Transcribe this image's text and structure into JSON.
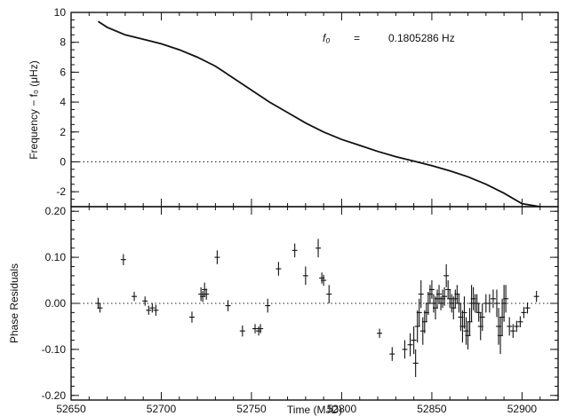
{
  "chart_data": [
    {
      "type": "line",
      "ylabel": "Frequency − f₀ (μHz)",
      "xlim": [
        52650,
        52920
      ],
      "ylim": [
        -3,
        10
      ],
      "yticks": [
        -2,
        0,
        2,
        4,
        6,
        8,
        10
      ],
      "annotation": {
        "symbol": "f₀",
        "equals": "=",
        "value": "0.1805286 Hz"
      },
      "series": [
        {
          "x": [
            52665,
            52670,
            52680,
            52690,
            52700,
            52710,
            52720,
            52730,
            52740,
            52750,
            52760,
            52770,
            52780,
            52790,
            52800,
            52810,
            52820,
            52830,
            52840,
            52850,
            52860,
            52870,
            52880,
            52890,
            52900,
            52910
          ],
          "y": [
            9.4,
            9.0,
            8.5,
            8.2,
            7.9,
            7.5,
            7.0,
            6.4,
            5.6,
            4.8,
            4.0,
            3.3,
            2.6,
            2.0,
            1.5,
            1.1,
            0.7,
            0.35,
            0.05,
            -0.25,
            -0.6,
            -1.0,
            -1.5,
            -2.1,
            -2.8,
            -3.3
          ]
        }
      ]
    },
    {
      "type": "scatter",
      "xlabel": "Time (MJD)",
      "ylabel": "Phase Residuals",
      "xlim": [
        52650,
        52920
      ],
      "ylim": [
        -0.21,
        0.21
      ],
      "xticks": [
        52650,
        52700,
        52750,
        52800,
        52850,
        52900
      ],
      "yticks": [
        -0.2,
        -0.1,
        0.0,
        0.1,
        0.2
      ],
      "ytick_labels": [
        "-0.20",
        "-0.10",
        "0.00",
        "0.10",
        "0.20"
      ],
      "series": [
        {
          "x": [
            52665,
            52666,
            52679,
            52685,
            52691,
            52693,
            52695,
            52697,
            52717,
            52722,
            52723,
            52724,
            52725,
            52731,
            52737,
            52745,
            52752,
            52754,
            52755,
            52759,
            52765,
            52774,
            52780,
            52787,
            52789,
            52790,
            52793,
            52821,
            52828,
            52835,
            52838,
            52840,
            52841,
            52842,
            52843,
            52844,
            52845,
            52846,
            52847,
            52848,
            52849,
            52850,
            52851,
            52852,
            52853,
            52854,
            52855,
            52856,
            52857,
            52858,
            52859,
            52860,
            52861,
            52862,
            52863,
            52864,
            52865,
            52866,
            52867,
            52868,
            52869,
            52870,
            52871,
            52872,
            52873,
            52874,
            52875,
            52876,
            52877,
            52878,
            52880,
            52882,
            52884,
            52886,
            52887,
            52888,
            52889,
            52890,
            52891,
            52893,
            52895,
            52897,
            52899,
            52901,
            52903,
            52908
          ],
          "y": [
            0.0,
            -0.01,
            0.095,
            0.015,
            0.005,
            -0.015,
            -0.01,
            -0.015,
            -0.03,
            0.02,
            0.015,
            0.03,
            0.02,
            0.1,
            -0.005,
            -0.06,
            -0.055,
            -0.06,
            -0.055,
            -0.005,
            0.075,
            0.115,
            0.06,
            0.12,
            0.055,
            0.05,
            0.02,
            -0.065,
            -0.11,
            -0.1,
            -0.09,
            -0.08,
            -0.13,
            -0.05,
            -0.02,
            0.02,
            -0.06,
            -0.04,
            -0.02,
            0.0,
            0.02,
            0.03,
            0.0,
            -0.01,
            0.01,
            0.02,
            0.0,
            0.01,
            0.015,
            0.06,
            0.03,
            0.01,
            0.0,
            -0.01,
            0.01,
            0.02,
            0.0,
            -0.03,
            -0.05,
            -0.02,
            -0.06,
            -0.07,
            -0.04,
            0.0,
            0.01,
            0.0,
            0.0,
            -0.02,
            -0.05,
            -0.03,
            0.0,
            0.0,
            0.01,
            0.0,
            -0.05,
            -0.07,
            -0.03,
            0.0,
            0.01,
            -0.05,
            -0.06,
            -0.05,
            -0.04,
            -0.02,
            -0.01,
            0.015
          ],
          "yerr": [
            0.012,
            0.01,
            0.012,
            0.01,
            0.01,
            0.01,
            0.01,
            0.012,
            0.012,
            0.015,
            0.012,
            0.015,
            0.012,
            0.015,
            0.012,
            0.012,
            0.01,
            0.01,
            0.01,
            0.015,
            0.015,
            0.015,
            0.02,
            0.02,
            0.012,
            0.012,
            0.02,
            0.01,
            0.015,
            0.02,
            0.025,
            0.03,
            0.03,
            0.035,
            0.03,
            0.03,
            0.03,
            0.025,
            0.02,
            0.025,
            0.02,
            0.02,
            0.02,
            0.025,
            0.02,
            0.02,
            0.015,
            0.02,
            0.02,
            0.025,
            0.02,
            0.02,
            0.02,
            0.025,
            0.02,
            0.02,
            0.02,
            0.03,
            0.035,
            0.035,
            0.03,
            0.03,
            0.03,
            0.04,
            0.025,
            0.02,
            0.02,
            0.02,
            0.03,
            0.03,
            0.02,
            0.02,
            0.02,
            0.03,
            0.04,
            0.04,
            0.04,
            0.04,
            0.03,
            0.02,
            0.015,
            0.012,
            0.012,
            0.012,
            0.012,
            0.012
          ]
        }
      ]
    }
  ]
}
